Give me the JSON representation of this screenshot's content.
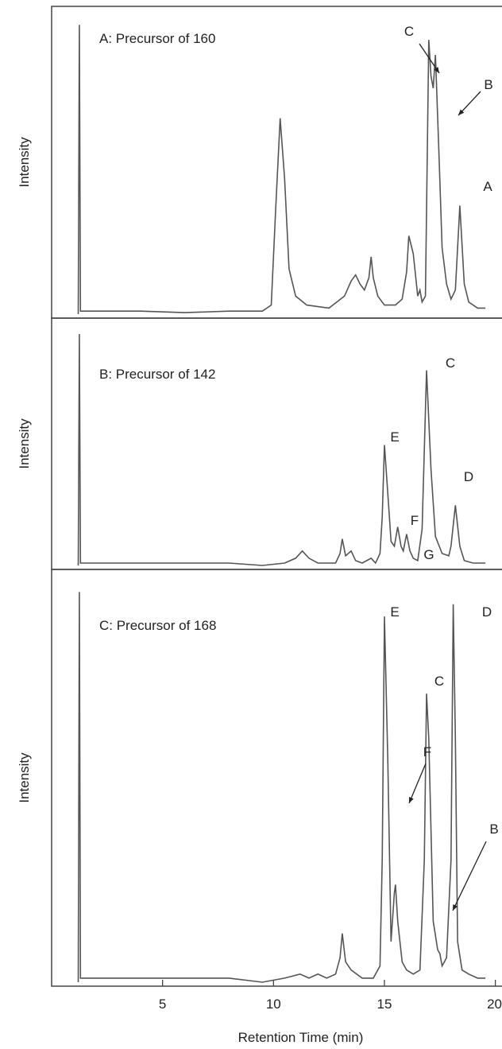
{
  "chart_data": [
    {
      "type": "line",
      "title": "A: Precursor of 160",
      "ylabel": "Intensity",
      "color": "#555555",
      "xlim": [
        0,
        20.3
      ],
      "ylim": [
        0,
        100
      ],
      "x": [
        1.2,
        1.25,
        1.3,
        2,
        4,
        6,
        8,
        9.5,
        9.9,
        10.1,
        10.3,
        10.5,
        10.7,
        11,
        11.5,
        12.5,
        13.2,
        13.5,
        13.7,
        13.9,
        14.1,
        14.3,
        14.4,
        14.5,
        14.7,
        15,
        15.5,
        15.8,
        16.0,
        16.1,
        16.3,
        16.5,
        16.6,
        16.7,
        16.85,
        17.0,
        17.1,
        17.2,
        17.3,
        17.45,
        17.6,
        17.8,
        18.0,
        18.2,
        18.4,
        18.6,
        18.8,
        19.2,
        19.55
      ],
      "values": [
        0,
        96,
        1,
        1,
        1,
        0.5,
        1,
        1,
        3,
        35,
        65,
        45,
        15,
        6,
        3,
        2,
        6,
        11,
        13,
        10,
        8,
        12,
        19,
        12,
        6,
        3,
        3,
        5,
        14,
        26,
        20,
        6,
        8,
        4,
        6,
        91,
        79,
        75,
        86,
        55,
        22,
        10,
        5,
        8,
        36,
        10,
        4,
        2,
        2
      ],
      "annotations": [
        {
          "text": "C"
        },
        {
          "text": "B"
        },
        {
          "text": "A"
        }
      ]
    },
    {
      "type": "line",
      "title": "B:  Precursor of 142",
      "ylabel": "Intensity",
      "color": "#555555",
      "xlim": [
        0,
        20.3
      ],
      "ylim": [
        0,
        100
      ],
      "x": [
        1.2,
        1.25,
        1.3,
        2,
        4,
        6,
        8,
        9.5,
        10.5,
        11.0,
        11.3,
        11.6,
        12.0,
        12.8,
        13.0,
        13.1,
        13.25,
        13.5,
        13.7,
        14.0,
        14.4,
        14.6,
        14.8,
        14.9,
        15.0,
        15.15,
        15.3,
        15.45,
        15.6,
        15.75,
        15.85,
        16.0,
        16.15,
        16.3,
        16.5,
        16.7,
        16.9,
        17.1,
        17.3,
        17.6,
        17.9,
        18.0,
        18.2,
        18.4,
        18.6,
        19.0,
        19.55
      ],
      "values": [
        0,
        96,
        1,
        1,
        1,
        1,
        1,
        0,
        1,
        3,
        6,
        3,
        1,
        1,
        5,
        11,
        4,
        6,
        2,
        1,
        3,
        1,
        5,
        20,
        50,
        30,
        10,
        8,
        16,
        8,
        6,
        13,
        6,
        3,
        2,
        15,
        81,
        40,
        12,
        5,
        4,
        8,
        25,
        8,
        2,
        1,
        1
      ],
      "annotations": [
        {
          "text": "E"
        },
        {
          "text": "F"
        },
        {
          "text": "G"
        },
        {
          "text": "C"
        },
        {
          "text": "D"
        }
      ]
    },
    {
      "type": "line",
      "title": "C:  Precursor of 168",
      "ylabel": "Intensity",
      "xlabel": "Retention Time (min)",
      "color": "#555555",
      "xlim": [
        0,
        20.3
      ],
      "ylim": [
        0,
        100
      ],
      "xticks": [
        5,
        10,
        15,
        20
      ],
      "x": [
        1.2,
        1.25,
        1.3,
        2,
        4,
        6,
        8,
        9.5,
        10.5,
        11.2,
        11.6,
        12.0,
        12.4,
        12.8,
        13.0,
        13.1,
        13.25,
        13.5,
        14.0,
        14.5,
        14.8,
        14.9,
        15.0,
        15.15,
        15.3,
        15.45,
        15.5,
        15.6,
        15.8,
        16.0,
        16.3,
        16.6,
        16.8,
        16.9,
        17.0,
        17.2,
        17.4,
        17.5,
        17.6,
        17.8,
        18.0,
        18.1,
        18.2,
        18.3,
        18.5,
        18.8,
        19.2,
        19.55
      ],
      "values": [
        0,
        96,
        1,
        1,
        1,
        1,
        1,
        0,
        1,
        2,
        1,
        2,
        1,
        2,
        6,
        12,
        5,
        3,
        1,
        1,
        4,
        30,
        90,
        55,
        10,
        22,
        24,
        15,
        5,
        3,
        2,
        3,
        30,
        71,
        60,
        15,
        8,
        7,
        4,
        6,
        30,
        93,
        60,
        10,
        3,
        2,
        1,
        1
      ],
      "annotations": [
        {
          "text": "E"
        },
        {
          "text": "D"
        },
        {
          "text": "C"
        },
        {
          "text": "F"
        },
        {
          "text": "B"
        }
      ]
    }
  ]
}
